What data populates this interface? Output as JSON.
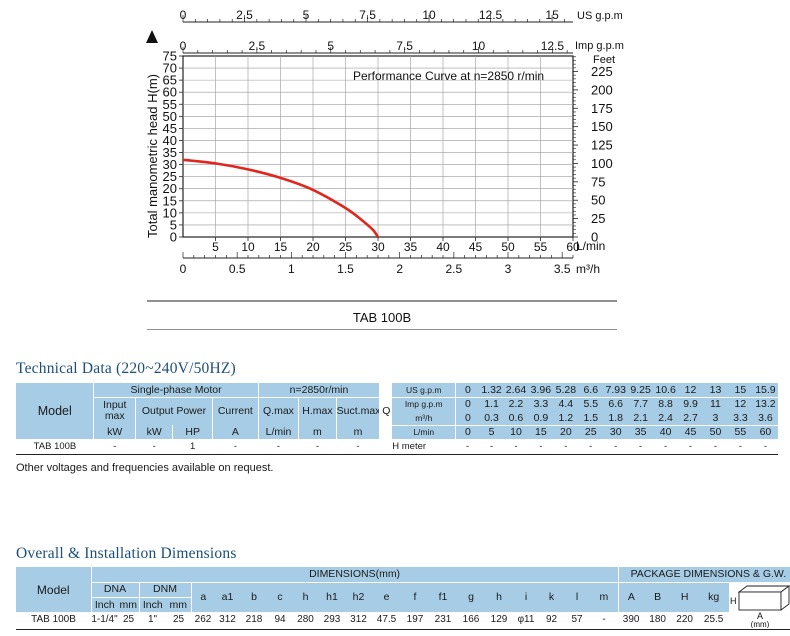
{
  "chart_data": {
    "type": "line",
    "title": "Performance Curve at n=2850 r/min",
    "caption": "TAB 100B",
    "ylabel": "Total manometric head H(m)",
    "ylim": [
      0,
      75
    ],
    "yticks": [
      "0",
      "5",
      "10",
      "15",
      "20",
      "25",
      "30",
      "35",
      "40",
      "45",
      "50",
      "55",
      "60",
      "65",
      "70",
      "75"
    ],
    "y2label": "Feet",
    "y2ticks": [
      "0",
      "25",
      "50",
      "75",
      "100",
      "125",
      "150",
      "175",
      "200",
      "225"
    ],
    "x_lmin": {
      "label": "L/min",
      "ticks": [
        "5",
        "10",
        "15",
        "20",
        "25",
        "30",
        "35",
        "40",
        "45",
        "50",
        "55",
        "60"
      ]
    },
    "x_m3h": {
      "label": "m³/h",
      "ticks": [
        "0",
        "0.5",
        "1",
        "1.5",
        "2",
        "2.5",
        "3",
        "3.5"
      ]
    },
    "x_usgpm": {
      "label": "US g.p.m",
      "ticks": [
        "0",
        "2.5",
        "5",
        "7.5",
        "10",
        "12.5",
        "15"
      ]
    },
    "x_impgpm": {
      "label": "Imp g.p.m",
      "ticks": [
        "0",
        "2.5",
        "5",
        "7.5",
        "10",
        "12.5"
      ]
    },
    "xlim": [
      0,
      60
    ],
    "series": [
      {
        "name": "TAB 100B",
        "color": "#e2261d",
        "x": [
          0,
          5,
          10,
          15,
          20,
          25,
          27.5,
          29.2,
          30
        ],
        "y": [
          32,
          30.5,
          28,
          24.5,
          19.5,
          12,
          7,
          3,
          0
        ]
      }
    ]
  },
  "tech": {
    "title": "Technical Data (220~240V/50HZ)",
    "model_label": "Model",
    "motor_label": "Single-phase Motor",
    "speed_label": "n=2850r/min",
    "input_label": "Input max",
    "output_label": "Output Power",
    "current_label": "Current",
    "qmax_label": "Q.max",
    "hmax_label": "H.max",
    "suct_label": "Suct.max",
    "q_label": "Q",
    "units": {
      "input": "kW",
      "output_kw": "kW",
      "output_hp": "HP",
      "current": "A",
      "qmax": "L/min",
      "hmax": "m",
      "suct": "m"
    },
    "flow_rows": [
      {
        "label": "US g.p.m",
        "values": [
          "0",
          "1.32",
          "2.64",
          "3.96",
          "5.28",
          "6.6",
          "7.93",
          "9.25",
          "10.6",
          "12",
          "13",
          "15",
          "15.9"
        ]
      },
      {
        "label": "Imp g.p.m",
        "values": [
          "0",
          "1.1",
          "2.2",
          "3.3",
          "4.4",
          "5.5",
          "6.6",
          "7.7",
          "8.8",
          "9.9",
          "11",
          "12",
          "13.2"
        ]
      },
      {
        "label": "m³/h",
        "values": [
          "0",
          "0.3",
          "0.6",
          "0.9",
          "1.2",
          "1.5",
          "1.8",
          "2.1",
          "2.4",
          "2.7",
          "3",
          "3.3",
          "3.6"
        ]
      },
      {
        "label": "L/min",
        "values": [
          "0",
          "5",
          "10",
          "15",
          "20",
          "25",
          "30",
          "35",
          "40",
          "45",
          "50",
          "55",
          "60"
        ]
      }
    ],
    "row": {
      "model": "TAB 100B",
      "input": "-",
      "output_kw": "-",
      "output_hp": "1",
      "current": "-",
      "qmax": "-",
      "hmax": "-",
      "suct": "-",
      "h_label": "H meter",
      "head": [
        "-",
        "-",
        "-",
        "-",
        "-",
        "-",
        "-",
        "-",
        "-",
        "-",
        "-",
        "-",
        "-"
      ]
    },
    "note": "Other voltages and frequencies available on request."
  },
  "dims": {
    "title": "Overall & Installation Dimensions",
    "model_label": "Model",
    "dims_label": "DIMENSIONS(mm)",
    "pkg_label": "PACKAGE DIMENSIONS & G.W.",
    "dna_label": "DNA",
    "dnm_label": "DNM",
    "inch_label": "Inch",
    "mm_label": "mm",
    "cols": [
      "a",
      "a1",
      "b",
      "c",
      "h",
      "h1",
      "h2",
      "e",
      "f",
      "f1",
      "g",
      "h",
      "i",
      "k",
      "l",
      "m"
    ],
    "pkg_cols": [
      "A",
      "B",
      "H",
      "kg"
    ],
    "row": {
      "model": "TAB 100B",
      "dna_inch": "1-1/4\"",
      "dna_mm": "25",
      "dnm_inch": "1\"",
      "dnm_mm": "25",
      "values": [
        "262",
        "312",
        "218",
        "94",
        "280",
        "293",
        "312",
        "47.5",
        "197",
        "231",
        "166",
        "129",
        "φ11",
        "92",
        "57",
        "-"
      ],
      "pkg": [
        "390",
        "180",
        "220",
        "25.5"
      ]
    },
    "box": {
      "h": "H",
      "a": "A",
      "b": "B",
      "unit": "(mm)"
    }
  }
}
